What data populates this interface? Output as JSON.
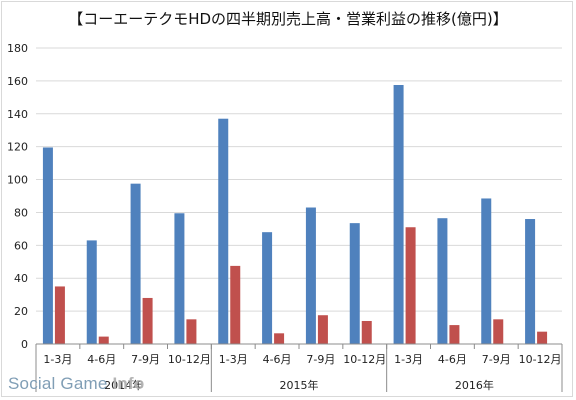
{
  "chart_data": {
    "type": "bar",
    "title": "【コーエーテクモHDの四半期別売上高・営業利益の推移(億円)】",
    "categories": [
      "1-3月",
      "4-6月",
      "7-9月",
      "10-12月",
      "1-3月",
      "4-6月",
      "7-9月",
      "10-12月",
      "1-3月",
      "4-6月",
      "7-9月",
      "10-12月"
    ],
    "groups": [
      {
        "label": "2014年",
        "span": 4
      },
      {
        "label": "2015年",
        "span": 4
      },
      {
        "label": "2016年",
        "span": 4
      }
    ],
    "series": [
      {
        "values": [
          119.5,
          63,
          97.5,
          79.5,
          137,
          68,
          83,
          73.5,
          157.5,
          76.5,
          88.5,
          76
        ],
        "color": "#4f81bd"
      },
      {
        "values": [
          35,
          4.5,
          28,
          15,
          47.5,
          6.5,
          17.5,
          14,
          71,
          11.5,
          15,
          7.5
        ],
        "color": "#c0504d"
      }
    ],
    "ylim": [
      0,
      180
    ],
    "yticks": [
      0,
      20,
      40,
      60,
      80,
      100,
      120,
      140,
      160,
      180
    ],
    "grid": true
  },
  "watermark": {
    "main": "Social Game ",
    "accent": "Info"
  }
}
